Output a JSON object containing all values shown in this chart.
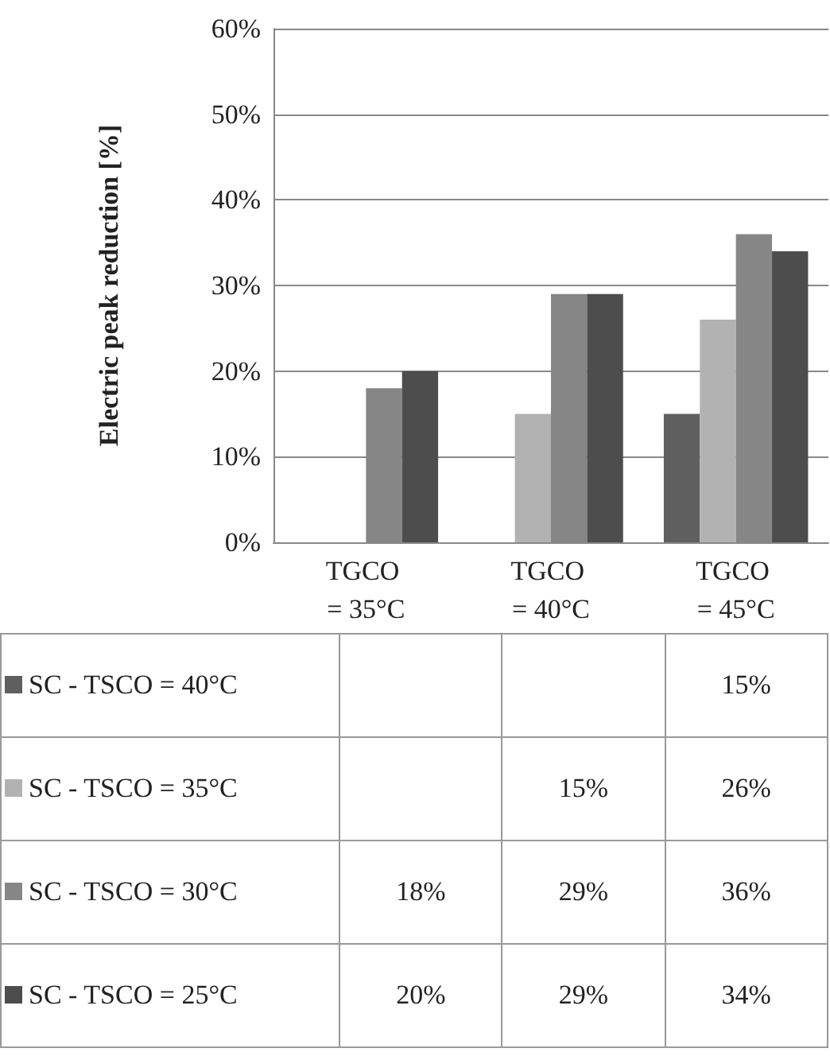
{
  "chart_data": {
    "type": "bar",
    "ylabel": "Electric peak reduction [%]",
    "categories": [
      "TGCO = 35°C",
      "TGCO = 40°C",
      "TGCO = 45°C"
    ],
    "series": [
      {
        "name": "SC - TSCO = 40°C",
        "color": "#5f5f5f",
        "values": [
          null,
          null,
          15
        ]
      },
      {
        "name": "SC - TSCO = 35°C",
        "color": "#b2b2b2",
        "values": [
          null,
          15,
          26
        ]
      },
      {
        "name": "SC - TSCO = 30°C",
        "color": "#868686",
        "values": [
          18,
          29,
          36
        ]
      },
      {
        "name": "SC - TSCO = 25°C",
        "color": "#4d4d4d",
        "values": [
          20,
          29,
          34
        ]
      }
    ],
    "ylim": [
      0,
      60
    ],
    "yticks": [
      {
        "value": 0,
        "label": "0%"
      },
      {
        "value": 10,
        "label": "10%"
      },
      {
        "value": 20,
        "label": "20%"
      },
      {
        "value": 30,
        "label": "30%"
      },
      {
        "value": 40,
        "label": "40%"
      },
      {
        "value": 50,
        "label": "50%"
      },
      {
        "value": 60,
        "label": "60%"
      }
    ],
    "value_labels": [
      [
        null,
        null,
        "15%"
      ],
      [
        null,
        "15%",
        "26%"
      ],
      [
        "18%",
        "29%",
        "36%"
      ],
      [
        "20%",
        "29%",
        "34%"
      ]
    ],
    "grid": "y",
    "legend": "bottom"
  }
}
